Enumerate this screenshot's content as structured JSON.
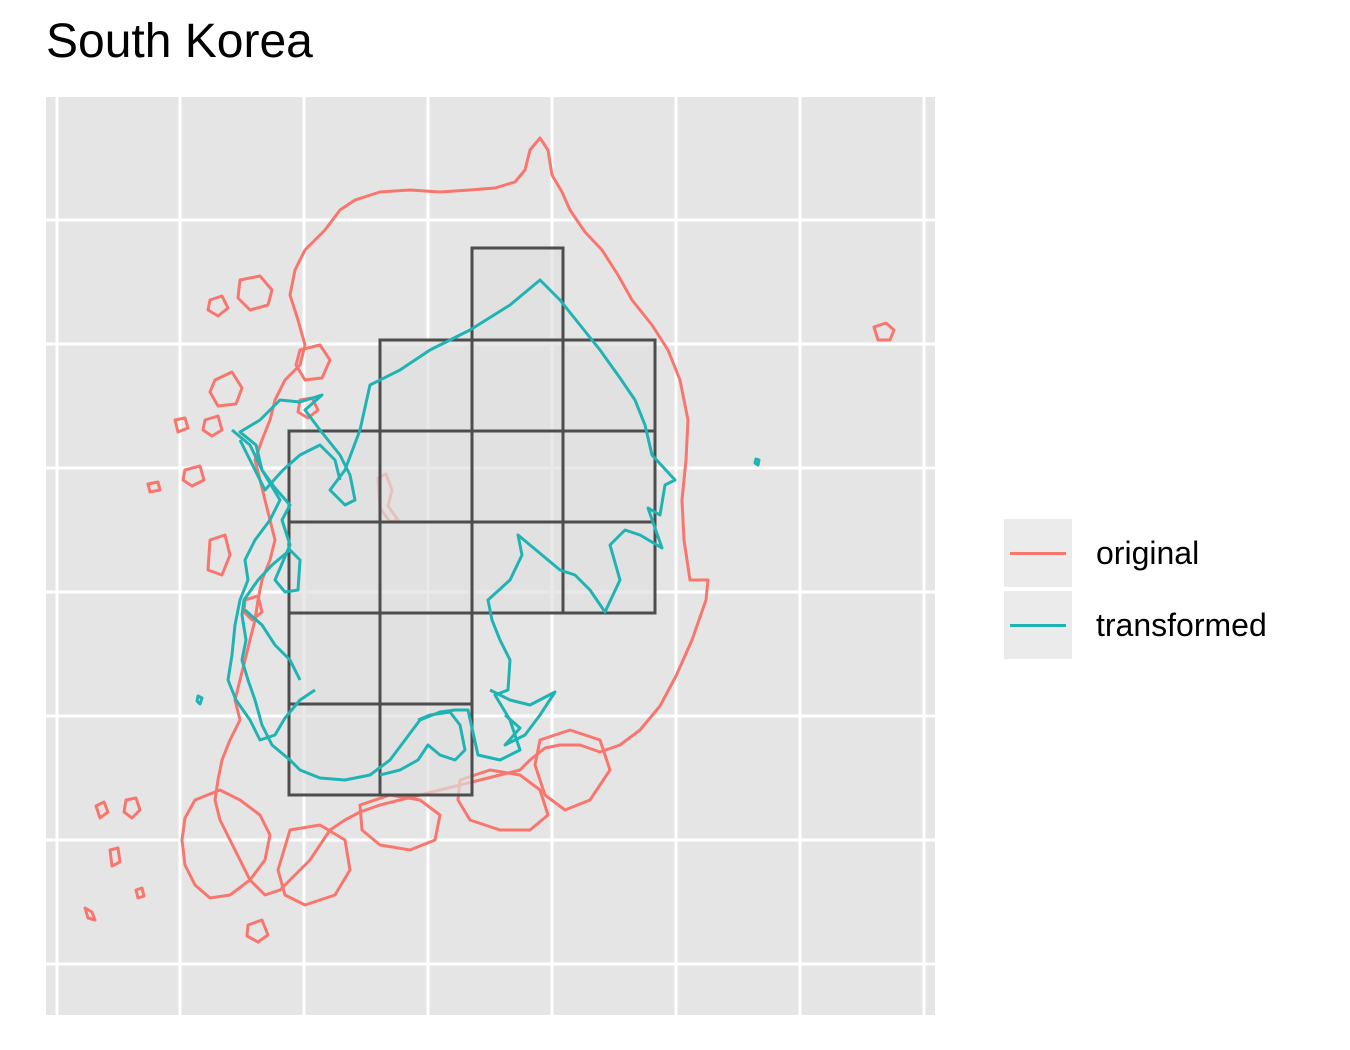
{
  "title": "South Korea",
  "colors": {
    "panel_background": "#e5e5e5",
    "grid_line": "#ffffff",
    "original": "#f8766d",
    "transformed": "#1fb3b3",
    "tile_fill": "#e0e0e0",
    "tile_border": "#4d4d4d"
  },
  "legend": {
    "items": [
      {
        "label": "original",
        "color": "#f8766d"
      },
      {
        "label": "transformed",
        "color": "#1fb3b3"
      }
    ]
  },
  "map": {
    "grid_tiles_rows": [
      {
        "row": 0,
        "cols": [
          3
        ]
      },
      {
        "row": 1,
        "cols": [
          2,
          3,
          4
        ]
      },
      {
        "row": 2,
        "cols": [
          1,
          2,
          3,
          4
        ]
      },
      {
        "row": 3,
        "cols": [
          1,
          2,
          3,
          4
        ]
      },
      {
        "row": 4,
        "cols": [
          1,
          2,
          3
        ]
      },
      {
        "row": 5,
        "cols": [
          1,
          2
        ]
      }
    ]
  }
}
